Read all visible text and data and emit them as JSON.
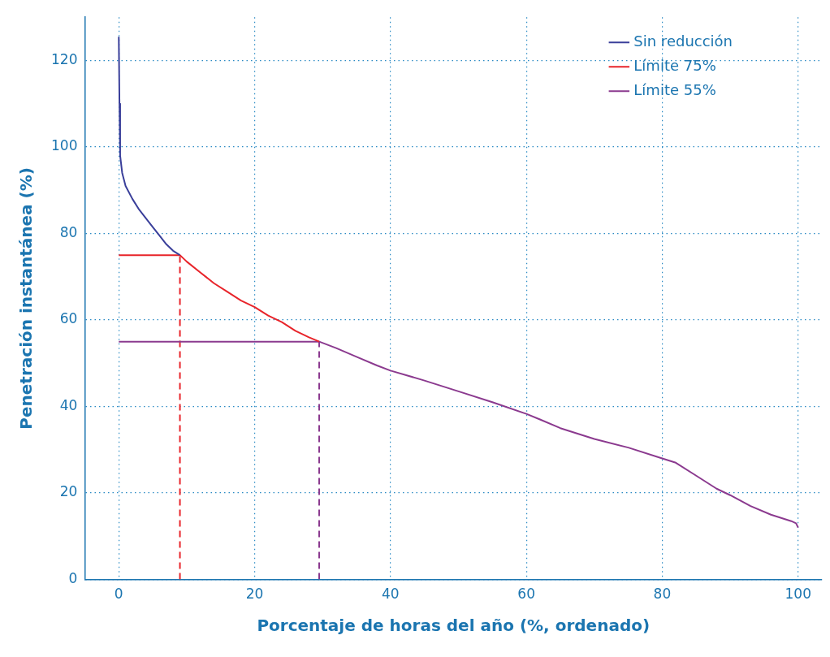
{
  "chart_data": {
    "type": "line",
    "xlabel": "Porcentaje de horas del año (%, ordenado)",
    "ylabel": "Penetración instantánea (%)",
    "xlim": [
      -5,
      103.5
    ],
    "ylim": [
      0,
      130
    ],
    "xticks": [
      0,
      20,
      40,
      60,
      80,
      100
    ],
    "yticks": [
      0,
      20,
      40,
      60,
      80,
      100,
      120
    ],
    "grid": true,
    "legend": "top right",
    "marker": "none",
    "line_style": "solid",
    "series": [
      {
        "name": "Sin reducción",
        "color": "#3a3f9a",
        "x": [
          0,
          0.1,
          0.2,
          0.5,
          1,
          2,
          3,
          4,
          5,
          6,
          7,
          8,
          9
        ],
        "values": [
          125.5,
          110,
          98,
          94,
          91,
          88,
          85.5,
          83.5,
          81.5,
          79.5,
          77.5,
          76,
          75
        ]
      },
      {
        "name": "Límite 75%",
        "color": "#e8242a",
        "x": [
          0,
          9,
          10,
          12,
          14,
          16,
          18,
          20,
          22,
          24,
          26,
          28,
          29.5
        ],
        "values": [
          75,
          75,
          73.5,
          71,
          68.5,
          66.5,
          64.5,
          63,
          61,
          59.5,
          57.5,
          56,
          55
        ]
      },
      {
        "name": "Límite 55%",
        "color": "#8b3a8f",
        "x": [
          0,
          29.5,
          32,
          35,
          38,
          40,
          45,
          50,
          55,
          60,
          62,
          65,
          70,
          75,
          80,
          82,
          85,
          88,
          90,
          93,
          96,
          99,
          99.7,
          100
        ],
        "values": [
          55,
          55,
          53.5,
          51.5,
          49.5,
          48.3,
          46,
          43.5,
          41,
          38.3,
          37,
          35,
          32.5,
          30.5,
          28,
          27,
          24,
          21,
          19.5,
          17,
          15,
          13.5,
          13,
          12
        ]
      },
      {
        "color": "#e8242a",
        "line_style": "dashed",
        "x": [
          9,
          9
        ],
        "values": [
          0,
          75
        ]
      },
      {
        "color": "#8b3a8f",
        "line_style": "dashed",
        "x": [
          29.5,
          29.5
        ],
        "values": [
          0,
          55
        ]
      }
    ]
  }
}
